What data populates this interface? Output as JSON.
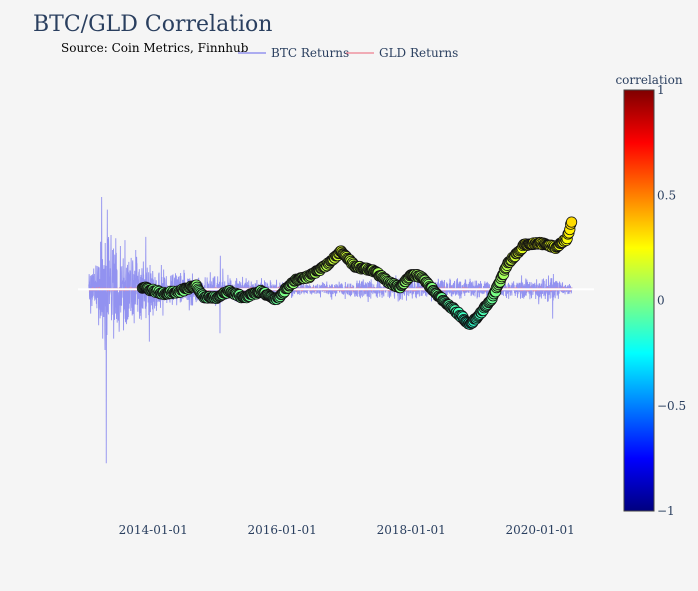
{
  "chart_data": {
    "type": "line+scatter",
    "title": "BTC/GLD Correlation",
    "annotation": "Source: Coin Metrics, Finnhub",
    "x_range": [
      "2012-11-01",
      "2020-11-01"
    ],
    "x_ticks": [
      {
        "date": "2014-01-01",
        "label": "2014-01-01"
      },
      {
        "date": "2016-01-01",
        "label": "2016-01-01"
      },
      {
        "date": "2018-01-01",
        "label": "2018-01-01"
      },
      {
        "date": "2020-01-01",
        "label": "2020-01-01"
      }
    ],
    "y_range": [
      -1.12,
      0.96
    ],
    "zero_line": 0,
    "series": [
      {
        "name": "BTC Returns",
        "type": "line",
        "color": "#8080ee",
        "date_start": "2013-01-01",
        "date_end": "2020-06-30",
        "volatility": [
          {
            "date": "2013-01-01",
            "v": 0.18
          },
          {
            "date": "2013-04-15",
            "v": 0.55
          },
          {
            "date": "2013-10-01",
            "v": 0.3
          },
          {
            "date": "2014-03-01",
            "v": 0.16
          },
          {
            "date": "2015-01-15",
            "v": 0.12
          },
          {
            "date": "2016-06-01",
            "v": 0.05
          },
          {
            "date": "2017-09-01",
            "v": 0.1
          },
          {
            "date": "2018-03-01",
            "v": 0.09
          },
          {
            "date": "2019-06-01",
            "v": 0.07
          },
          {
            "date": "2020-03-15",
            "v": 0.12
          },
          {
            "date": "2020-06-30",
            "v": 0.04
          }
        ],
        "spikes": [
          {
            "date": "2013-03-15",
            "value": 0.44
          },
          {
            "date": "2013-04-10",
            "value": -0.83
          },
          {
            "date": "2013-04-16",
            "value": 0.38
          },
          {
            "date": "2013-11-20",
            "value": 0.25
          },
          {
            "date": "2013-12-10",
            "value": -0.25
          },
          {
            "date": "2015-01-14",
            "value": -0.21
          },
          {
            "date": "2015-01-16",
            "value": 0.16
          },
          {
            "date": "2020-03-12",
            "value": -0.14
          }
        ]
      },
      {
        "name": "GLD Returns",
        "type": "line",
        "color": "#ee7f8f",
        "date_start": "2013-01-01",
        "date_end": "2020-06-30",
        "volatility": [
          {
            "date": "2013-01-01",
            "v": 0.015
          },
          {
            "date": "2020-06-30",
            "v": 0.015
          }
        ]
      },
      {
        "name": "correlation",
        "type": "scatter",
        "date_start": "2013-11-01",
        "date_end": "2020-06-30",
        "path": [
          {
            "date": "2013-11-01",
            "value": 0.01
          },
          {
            "date": "2014-03-01",
            "value": -0.02
          },
          {
            "date": "2014-06-01",
            "value": -0.01
          },
          {
            "date": "2014-09-01",
            "value": 0.02
          },
          {
            "date": "2014-10-15",
            "value": -0.04
          },
          {
            "date": "2015-01-01",
            "value": -0.04
          },
          {
            "date": "2015-03-01",
            "value": -0.01
          },
          {
            "date": "2015-06-01",
            "value": -0.04
          },
          {
            "date": "2015-09-01",
            "value": -0.01
          },
          {
            "date": "2015-12-01",
            "value": -0.05
          },
          {
            "date": "2016-02-01",
            "value": 0.01
          },
          {
            "date": "2016-04-01",
            "value": 0.05
          },
          {
            "date": "2016-06-01",
            "value": 0.06
          },
          {
            "date": "2016-09-01",
            "value": 0.11
          },
          {
            "date": "2016-12-01",
            "value": 0.18
          },
          {
            "date": "2017-02-15",
            "value": 0.11
          },
          {
            "date": "2017-06-01",
            "value": 0.09
          },
          {
            "date": "2017-09-01",
            "value": 0.03
          },
          {
            "date": "2017-11-01",
            "value": 0.01
          },
          {
            "date": "2018-01-01",
            "value": 0.07
          },
          {
            "date": "2018-03-01",
            "value": 0.06
          },
          {
            "date": "2018-06-01",
            "value": -0.03
          },
          {
            "date": "2018-10-01",
            "value": -0.12
          },
          {
            "date": "2018-12-01",
            "value": -0.17
          },
          {
            "date": "2019-04-01",
            "value": -0.05
          },
          {
            "date": "2019-07-01",
            "value": 0.12
          },
          {
            "date": "2019-10-01",
            "value": 0.21
          },
          {
            "date": "2020-01-01",
            "value": 0.22
          },
          {
            "date": "2020-04-01",
            "value": 0.2
          },
          {
            "date": "2020-06-01",
            "value": 0.24
          },
          {
            "date": "2020-06-30",
            "value": 0.33
          }
        ]
      }
    ],
    "colorbar": {
      "title": "correlation",
      "range": [
        -1,
        1
      ],
      "ticks": [
        {
          "value": 1,
          "label": "1"
        },
        {
          "value": 0.5,
          "label": "0.5"
        },
        {
          "value": 0,
          "label": "0"
        },
        {
          "value": -0.5,
          "label": "−0.5"
        },
        {
          "value": -1,
          "label": "−1"
        }
      ],
      "colorscale": [
        {
          "pos": 0.0,
          "color": "#00007f"
        },
        {
          "pos": 0.125,
          "color": "#0000ff"
        },
        {
          "pos": 0.375,
          "color": "#00ffff"
        },
        {
          "pos": 0.625,
          "color": "#ffff00"
        },
        {
          "pos": 0.875,
          "color": "#ff0000"
        },
        {
          "pos": 1.0,
          "color": "#7f0000"
        }
      ]
    }
  }
}
